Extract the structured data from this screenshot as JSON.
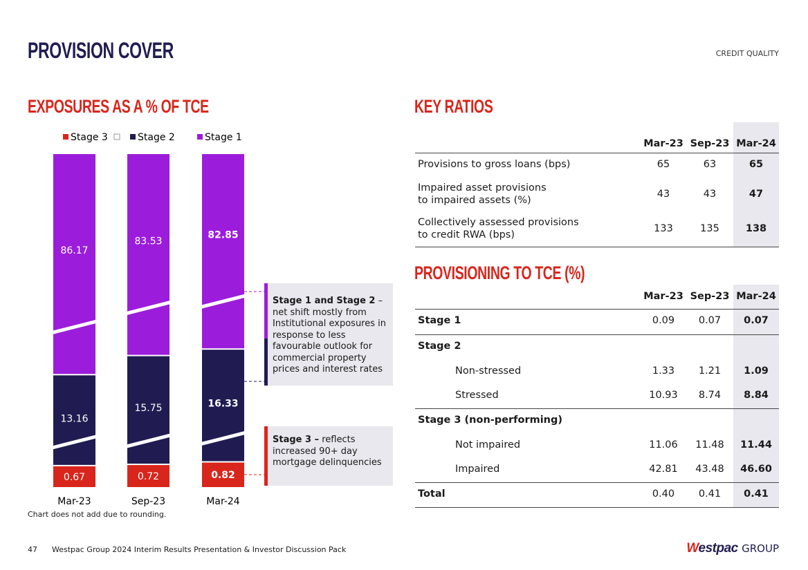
{
  "header": {
    "title": "PROVISION COVER",
    "section": "CREDIT QUALITY"
  },
  "chart_data": {
    "type": "stacked_bar",
    "title": "EXPOSURES AS A % OF TCE",
    "categories": [
      "Mar-23",
      "Sep-23",
      "Mar-24"
    ],
    "series": [
      {
        "name": "Stage 3",
        "color": "#d9261c",
        "values": [
          0.67,
          0.72,
          0.82
        ]
      },
      {
        "name": "Stage 2",
        "color": "#201c52",
        "values": [
          13.16,
          15.75,
          16.33
        ]
      },
      {
        "name": "Stage 1",
        "color": "#9b1ddb",
        "values": [
          86.17,
          83.53,
          82.85
        ]
      }
    ],
    "note": "Chart does not add due to rounding.",
    "annotations": [
      {
        "bold": "Stage 1 and Stage 2",
        "text": " – net shift mostly from Institutional exposures in response to less favourable outlook for commercial property prices and interest rates"
      },
      {
        "bold": "Stage 3 –",
        "text": " reflects increased 90+ day mortgage delinquencies"
      }
    ]
  },
  "key_ratios": {
    "title": "KEY RATIOS",
    "columns": [
      "Mar-23",
      "Sep-23",
      "Mar-24"
    ],
    "rows": [
      {
        "label": [
          "Provisions to gross loans (bps)"
        ],
        "values": [
          "65",
          "63",
          "65"
        ]
      },
      {
        "label": [
          "Impaired asset provisions",
          "to impaired assets (%)"
        ],
        "values": [
          "43",
          "43",
          "47"
        ]
      },
      {
        "label": [
          "Collectively assessed provisions",
          "to credit RWA (bps)"
        ],
        "values": [
          "133",
          "135",
          "138"
        ]
      }
    ]
  },
  "provisioning": {
    "title": "PROVISIONING TO TCE (%)",
    "columns": [
      "Mar-23",
      "Sep-23",
      "Mar-24"
    ],
    "rows": [
      {
        "label": "Stage 1",
        "values": [
          "0.09",
          "0.07",
          "0.07"
        ]
      },
      {
        "label": "Stage 2"
      },
      {
        "label": "Non-stressed",
        "indent": true,
        "values": [
          "1.33",
          "1.21",
          "1.09"
        ]
      },
      {
        "label": "Stressed",
        "indent": true,
        "values": [
          "10.93",
          "8.74",
          "8.84"
        ]
      },
      {
        "label": "Stage 3 (non-performing)"
      },
      {
        "label": "Not impaired",
        "indent": true,
        "values": [
          "11.06",
          "11.48",
          "11.44"
        ]
      },
      {
        "label": "Impaired",
        "indent": true,
        "values": [
          "42.81",
          "43.48",
          "46.60"
        ]
      },
      {
        "label": "Total",
        "values": [
          "0.40",
          "0.41",
          "0.41"
        ]
      }
    ]
  },
  "footer": {
    "page": "47",
    "text": "Westpac Group 2024 Interim Results Presentation & Investor Discussion Pack",
    "logo": "Westpac",
    "logo_suffix": "GROUP"
  }
}
